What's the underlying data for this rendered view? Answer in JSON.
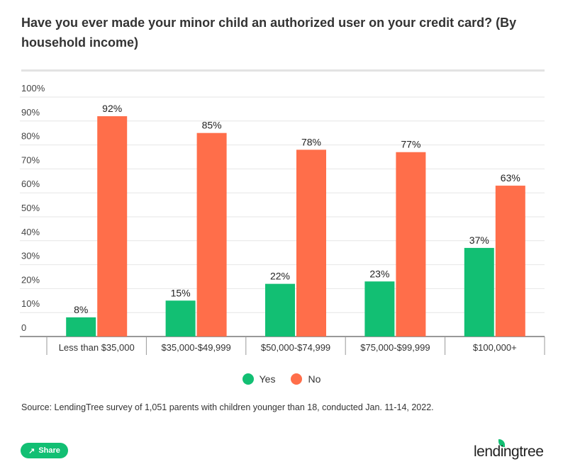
{
  "chart_data": {
    "type": "bar",
    "title": "Have you ever made your minor child an authorized user on your credit card? (By household income)",
    "categories": [
      "Less than $35,000",
      "$35,000-$49,999",
      "$50,000-$74,999",
      "$75,000-$99,999",
      "$100,000+"
    ],
    "series": [
      {
        "name": "Yes",
        "color": "#12bf73",
        "values": [
          8,
          15,
          22,
          23,
          37
        ]
      },
      {
        "name": "No",
        "color": "#ff6e4a",
        "values": [
          92,
          85,
          78,
          77,
          63
        ]
      }
    ],
    "ylim": [
      0,
      100
    ],
    "yticks": [
      "0",
      "10%",
      "20%",
      "30%",
      "40%",
      "50%",
      "60%",
      "70%",
      "80%",
      "90%",
      "100%"
    ],
    "grid": true,
    "legend": "bottom",
    "source": "Source: LendingTree survey of 1,051 parents with children younger than 18, conducted Jan. 11-14, 2022."
  },
  "share_label": "Share",
  "logo": "lendingtree"
}
